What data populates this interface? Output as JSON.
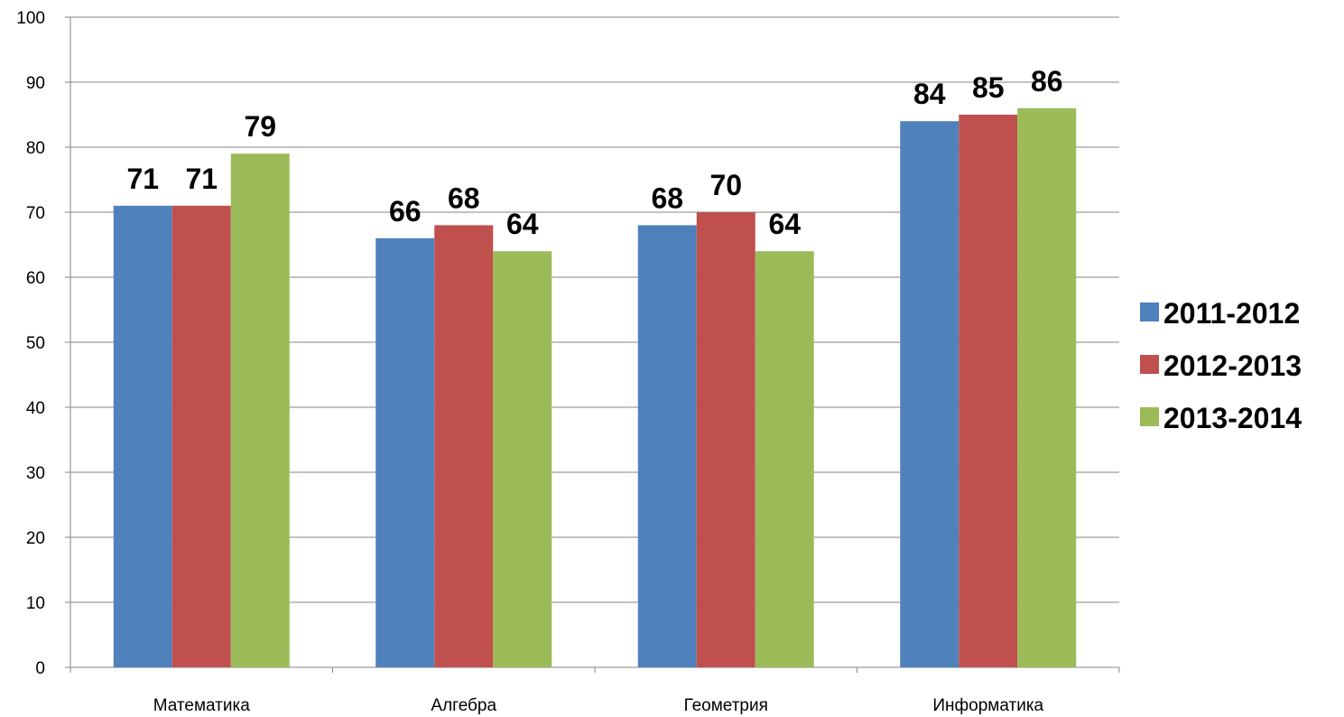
{
  "chart_data": {
    "type": "bar",
    "title": "",
    "xlabel": "",
    "ylabel": "",
    "categories": [
      "Математика",
      "Алгебра",
      "Геометрия",
      "Информатика"
    ],
    "series": [
      {
        "name": "2011-2012",
        "values": [
          71,
          66,
          68,
          84
        ],
        "color": "#4F81BD"
      },
      {
        "name": "2012-2013",
        "values": [
          71,
          68,
          70,
          85
        ],
        "color": "#C0504D"
      },
      {
        "name": "2013-2014",
        "values": [
          79,
          64,
          64,
          86
        ],
        "color": "#9BBB59"
      }
    ],
    "ylim": [
      0,
      100
    ],
    "yticks": [
      0,
      10,
      20,
      30,
      40,
      50,
      60,
      70,
      80,
      90,
      100
    ],
    "grid": true,
    "legend_position": "right",
    "data_labels": true
  }
}
